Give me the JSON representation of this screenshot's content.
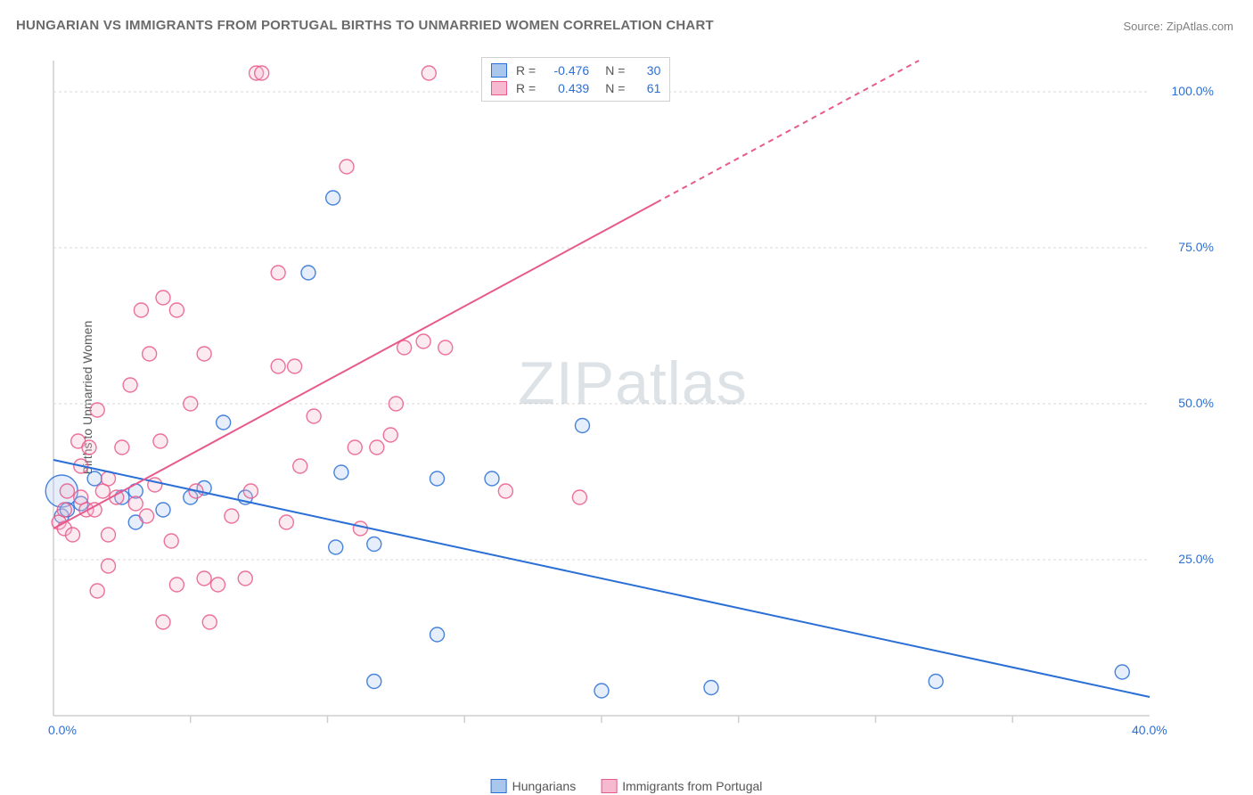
{
  "title": "HUNGARIAN VS IMMIGRANTS FROM PORTUGAL BIRTHS TO UNMARRIED WOMEN CORRELATION CHART",
  "source": "Source: ZipAtlas.com",
  "y_axis_label": "Births to Unmarried Women",
  "watermark": "ZIPatlas",
  "chart": {
    "type": "scatter",
    "xlim": [
      0,
      40
    ],
    "ylim": [
      0,
      105
    ],
    "x_ticks": [
      0,
      40
    ],
    "x_tick_labels": [
      "0.0%",
      "40.0%"
    ],
    "x_minor_ticks": [
      5,
      10,
      15,
      20,
      25,
      30,
      35
    ],
    "y_ticks": [
      25,
      50,
      75,
      100
    ],
    "y_tick_labels": [
      "25.0%",
      "50.0%",
      "75.0%",
      "100.0%"
    ],
    "background_color": "#ffffff",
    "grid_color": "#d8d8d8",
    "grid_dash": "3,3",
    "axis_color": "#cfcfcf",
    "marker_radius": 8,
    "marker_stroke_width": 1.4,
    "marker_fill_opacity": 0.3,
    "trend_line_width": 2
  },
  "series": [
    {
      "name": "Hungarians",
      "color": "#2a6fd6",
      "fill": "#a9c6ed",
      "R": "-0.476",
      "N": "30",
      "trend": {
        "x1": 0,
        "y1": 41,
        "x2": 40,
        "y2": 3,
        "dash_from_x": null
      },
      "points": [
        {
          "x": 0.3,
          "y": 36,
          "r": 18
        },
        {
          "x": 0.3,
          "y": 32
        },
        {
          "x": 0.5,
          "y": 33
        },
        {
          "x": 1.0,
          "y": 34
        },
        {
          "x": 1.5,
          "y": 38
        },
        {
          "x": 2.5,
          "y": 35
        },
        {
          "x": 3.0,
          "y": 36
        },
        {
          "x": 3.0,
          "y": 31
        },
        {
          "x": 4.0,
          "y": 33
        },
        {
          "x": 5.0,
          "y": 35
        },
        {
          "x": 5.5,
          "y": 36.5
        },
        {
          "x": 6.2,
          "y": 47
        },
        {
          "x": 7.0,
          "y": 35
        },
        {
          "x": 9.3,
          "y": 71
        },
        {
          "x": 10.2,
          "y": 83
        },
        {
          "x": 10.3,
          "y": 27
        },
        {
          "x": 10.5,
          "y": 39
        },
        {
          "x": 11.7,
          "y": 5.5
        },
        {
          "x": 11.7,
          "y": 27.5
        },
        {
          "x": 14.0,
          "y": 38
        },
        {
          "x": 14.0,
          "y": 13
        },
        {
          "x": 16.0,
          "y": 38
        },
        {
          "x": 19.3,
          "y": 46.5
        },
        {
          "x": 20.0,
          "y": 4
        },
        {
          "x": 24.0,
          "y": 4.5
        },
        {
          "x": 32.2,
          "y": 5.5
        },
        {
          "x": 39.0,
          "y": 7
        }
      ]
    },
    {
      "name": "Immigrants from Portugal",
      "color": "#e75a8b",
      "fill": "#f6b9cf",
      "R": "0.439",
      "N": "61",
      "trend": {
        "x1": 0,
        "y1": 30,
        "x2": 40,
        "y2": 125,
        "dash_from_x": 22
      },
      "points": [
        {
          "x": 0.2,
          "y": 31
        },
        {
          "x": 0.4,
          "y": 30
        },
        {
          "x": 0.4,
          "y": 33
        },
        {
          "x": 0.5,
          "y": 36
        },
        {
          "x": 0.7,
          "y": 29
        },
        {
          "x": 0.9,
          "y": 44
        },
        {
          "x": 1.0,
          "y": 35
        },
        {
          "x": 1.0,
          "y": 40
        },
        {
          "x": 1.2,
          "y": 33
        },
        {
          "x": 1.3,
          "y": 43
        },
        {
          "x": 1.5,
          "y": 33
        },
        {
          "x": 1.6,
          "y": 49
        },
        {
          "x": 1.6,
          "y": 20
        },
        {
          "x": 1.8,
          "y": 36
        },
        {
          "x": 2.0,
          "y": 24
        },
        {
          "x": 2.0,
          "y": 29
        },
        {
          "x": 2.0,
          "y": 38
        },
        {
          "x": 2.3,
          "y": 35
        },
        {
          "x": 2.5,
          "y": 43
        },
        {
          "x": 2.8,
          "y": 53
        },
        {
          "x": 3.0,
          "y": 34
        },
        {
          "x": 3.2,
          "y": 65
        },
        {
          "x": 3.4,
          "y": 32
        },
        {
          "x": 3.5,
          "y": 58
        },
        {
          "x": 3.7,
          "y": 37
        },
        {
          "x": 3.9,
          "y": 44
        },
        {
          "x": 4.0,
          "y": 67
        },
        {
          "x": 4.0,
          "y": 15
        },
        {
          "x": 4.3,
          "y": 28
        },
        {
          "x": 4.5,
          "y": 65
        },
        {
          "x": 4.5,
          "y": 21
        },
        {
          "x": 5.0,
          "y": 50
        },
        {
          "x": 5.2,
          "y": 36
        },
        {
          "x": 5.5,
          "y": 58
        },
        {
          "x": 5.5,
          "y": 22
        },
        {
          "x": 5.7,
          "y": 15
        },
        {
          "x": 6.0,
          "y": 21
        },
        {
          "x": 6.5,
          "y": 32
        },
        {
          "x": 7.0,
          "y": 22
        },
        {
          "x": 7.2,
          "y": 36
        },
        {
          "x": 7.4,
          "y": 103
        },
        {
          "x": 7.6,
          "y": 103
        },
        {
          "x": 8.2,
          "y": 56
        },
        {
          "x": 8.2,
          "y": 71
        },
        {
          "x": 8.5,
          "y": 31
        },
        {
          "x": 8.8,
          "y": 56
        },
        {
          "x": 9.0,
          "y": 40
        },
        {
          "x": 9.5,
          "y": 48
        },
        {
          "x": 10.7,
          "y": 88
        },
        {
          "x": 11.0,
          "y": 43
        },
        {
          "x": 11.2,
          "y": 30
        },
        {
          "x": 11.8,
          "y": 43
        },
        {
          "x": 12.3,
          "y": 45
        },
        {
          "x": 12.5,
          "y": 50
        },
        {
          "x": 12.8,
          "y": 59
        },
        {
          "x": 13.5,
          "y": 60
        },
        {
          "x": 13.7,
          "y": 103
        },
        {
          "x": 14.3,
          "y": 59
        },
        {
          "x": 16.5,
          "y": 36
        },
        {
          "x": 19.2,
          "y": 35
        }
      ]
    }
  ],
  "stats_legend": {
    "r_label": "R =",
    "n_label": "N ="
  },
  "bottom_legend": {}
}
